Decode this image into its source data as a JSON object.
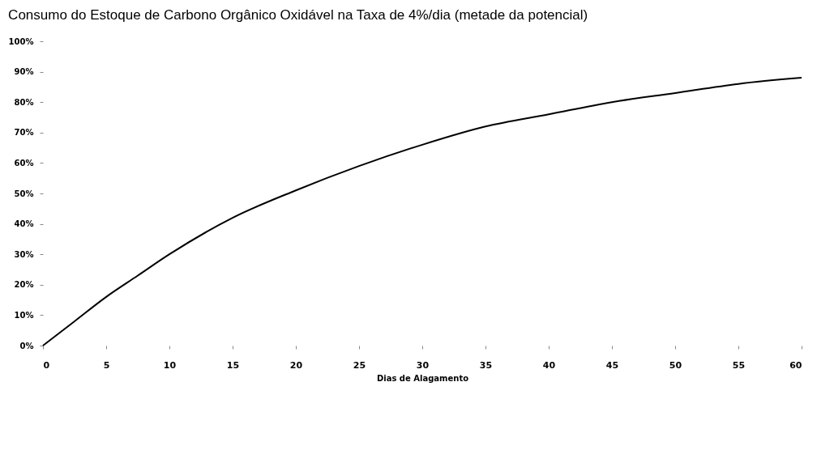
{
  "chart_data": {
    "type": "line",
    "title": "Consumo do Estoque de Carbono Orgânico Oxidável na Taxa de 4%/dia (metade da potencial)",
    "xlabel": "Dias de Alagamento",
    "x": [
      0,
      2.5,
      5,
      7.5,
      10,
      15,
      20,
      25,
      30,
      35,
      40,
      45,
      50,
      55,
      60
    ],
    "series": [
      {
        "color": "#000000",
        "values": [
          0,
          8,
          16,
          23,
          30,
          42,
          51,
          59,
          66,
          72,
          76,
          80,
          83,
          86,
          88
        ]
      }
    ],
    "xlim": [
      0,
      60
    ],
    "xticks": [
      0,
      5,
      10,
      15,
      20,
      25,
      30,
      35,
      40,
      45,
      50,
      55,
      60
    ],
    "ylim": [
      0,
      100
    ],
    "yticks": [
      {
        "value": 0,
        "label": "0%"
      },
      {
        "value": 10,
        "label": "10%"
      },
      {
        "value": 20,
        "label": "20%"
      },
      {
        "value": 30,
        "label": "30%"
      },
      {
        "value": 40,
        "label": "40%"
      },
      {
        "value": 50,
        "label": "50%"
      },
      {
        "value": 60,
        "label": "60%"
      },
      {
        "value": 70,
        "label": "70%"
      },
      {
        "value": 80,
        "label": "80%"
      },
      {
        "value": 90,
        "label": "90%"
      },
      {
        "value": 100,
        "label": "100%"
      }
    ],
    "grid": false,
    "legend": false,
    "marker": "none",
    "line_style": "solid"
  }
}
